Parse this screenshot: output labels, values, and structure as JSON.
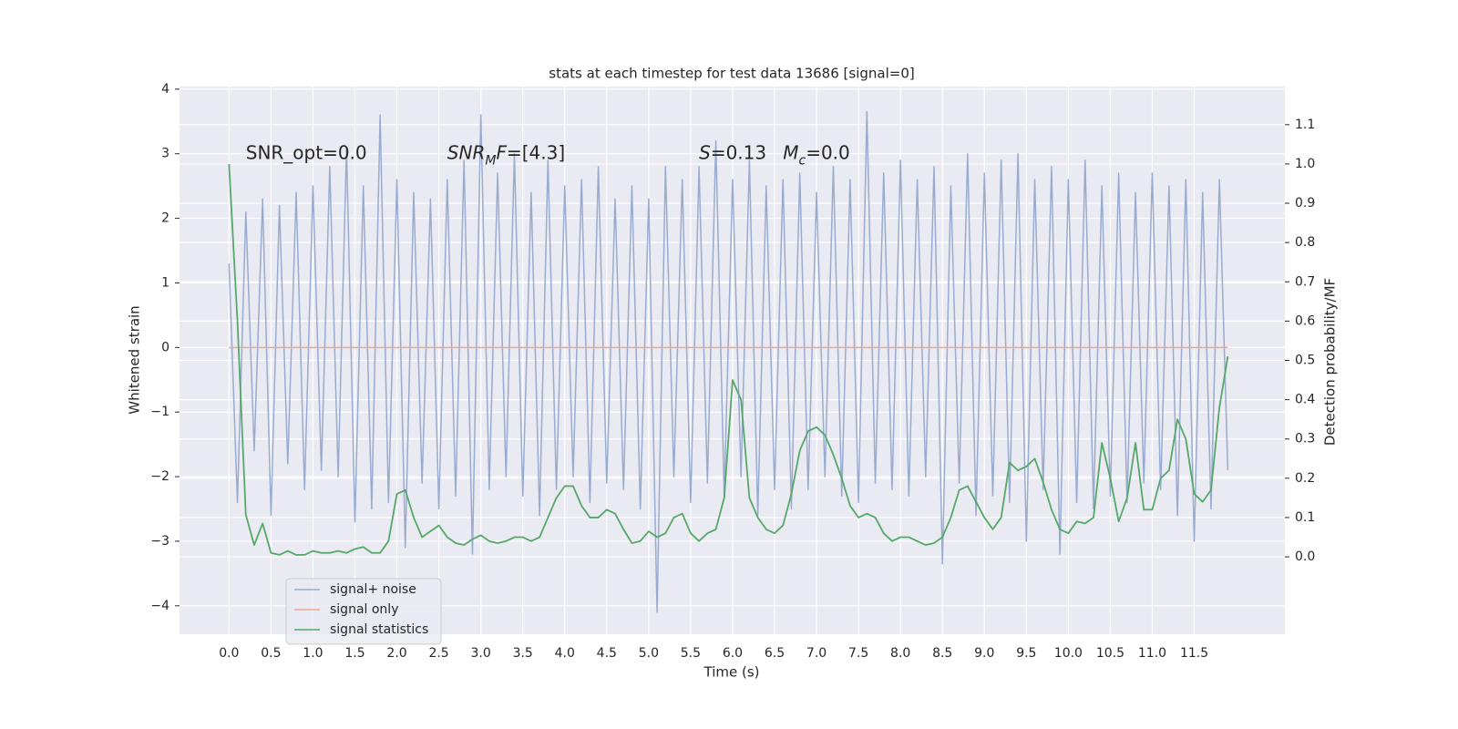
{
  "chart_data": {
    "type": "line",
    "title": "stats at each timestep for test data 13686 [signal=0]",
    "xlabel": "Time (s)",
    "ylabel": "Whitened strain",
    "y2label": "Detection probability/MF",
    "annotations": [
      {
        "x": 0.2,
        "y": 3.0,
        "segments": [
          {
            "text": "SNR_opt=0.0",
            "italic": false,
            "sub": false
          }
        ]
      },
      {
        "x": 2.6,
        "y": 3.0,
        "segments": [
          {
            "text": "SNR",
            "italic": true,
            "sub": false
          },
          {
            "text": "M",
            "italic": true,
            "sub": true
          },
          {
            "text": "F",
            "italic": true,
            "sub": false
          },
          {
            "text": "=[4.3]",
            "italic": false,
            "sub": false
          }
        ]
      },
      {
        "x": 5.6,
        "y": 3.0,
        "segments": [
          {
            "text": "S",
            "italic": true,
            "sub": false
          },
          {
            "text": "=0.13",
            "italic": false,
            "sub": false
          }
        ]
      },
      {
        "x": 6.6,
        "y": 3.0,
        "segments": [
          {
            "text": "M",
            "italic": true,
            "sub": false
          },
          {
            "text": "c",
            "italic": true,
            "sub": true
          },
          {
            "text": "=0.0",
            "italic": false,
            "sub": false
          }
        ]
      }
    ],
    "x": [
      0.0,
      0.1,
      0.2,
      0.3,
      0.4,
      0.5,
      0.6,
      0.7,
      0.8,
      0.9,
      1.0,
      1.1,
      1.2,
      1.3,
      1.4,
      1.5,
      1.6,
      1.7,
      1.8,
      1.9,
      2.0,
      2.1,
      2.2,
      2.3,
      2.4,
      2.5,
      2.6,
      2.7,
      2.8,
      2.9,
      3.0,
      3.1,
      3.2,
      3.3,
      3.4,
      3.5,
      3.6,
      3.7,
      3.8,
      3.9,
      4.0,
      4.1,
      4.2,
      4.3,
      4.4,
      4.5,
      4.6,
      4.7,
      4.8,
      4.9,
      5.0,
      5.1,
      5.2,
      5.3,
      5.4,
      5.5,
      5.6,
      5.7,
      5.8,
      5.9,
      6.0,
      6.1,
      6.2,
      6.3,
      6.4,
      6.5,
      6.6,
      6.7,
      6.8,
      6.9,
      7.0,
      7.1,
      7.2,
      7.3,
      7.4,
      7.5,
      7.6,
      7.7,
      7.8,
      7.9,
      8.0,
      8.1,
      8.2,
      8.3,
      8.4,
      8.5,
      8.6,
      8.7,
      8.8,
      8.9,
      9.0,
      9.1,
      9.2,
      9.3,
      9.4,
      9.5,
      9.6,
      9.7,
      9.8,
      9.9,
      10.0,
      10.1,
      10.2,
      10.3,
      10.4,
      10.5,
      10.6,
      10.7,
      10.8,
      10.9,
      11.0,
      11.1,
      11.2,
      11.3,
      11.4,
      11.5,
      11.6,
      11.7,
      11.8,
      11.9
    ],
    "series": [
      {
        "name": "signal+ noise",
        "color": "#9aabd0",
        "axis": "y",
        "values": [
          1.3,
          -2.4,
          2.1,
          -1.6,
          2.3,
          -2.6,
          2.2,
          -1.8,
          2.4,
          -2.2,
          2.5,
          -1.9,
          2.8,
          -2.0,
          3.1,
          -2.7,
          2.5,
          -2.5,
          3.6,
          -2.4,
          2.6,
          -3.1,
          2.4,
          -2.1,
          2.3,
          -2.5,
          2.6,
          -2.3,
          2.9,
          -3.2,
          3.6,
          -2.2,
          2.7,
          -2.0,
          3.0,
          -2.3,
          2.4,
          -2.6,
          2.9,
          -2.2,
          2.5,
          -2.0,
          2.6,
          -2.4,
          2.8,
          -2.1,
          2.3,
          -2.2,
          2.5,
          -2.5,
          2.3,
          -4.1,
          2.8,
          -2.0,
          2.6,
          -2.4,
          2.8,
          -2.1,
          3.2,
          -2.3,
          2.6,
          -2.0,
          2.9,
          -2.6,
          2.5,
          -2.2,
          2.6,
          -2.5,
          2.7,
          -2.2,
          2.4,
          -2.0,
          2.8,
          -2.3,
          2.6,
          -2.4,
          3.65,
          -2.1,
          2.7,
          -2.2,
          2.9,
          -2.3,
          2.6,
          -2.0,
          2.8,
          -3.35,
          2.5,
          -2.1,
          3.0,
          -2.6,
          2.7,
          -2.3,
          2.9,
          -2.4,
          3.0,
          -3.0,
          2.6,
          -2.2,
          2.8,
          -3.2,
          2.6,
          -2.4,
          2.9,
          -2.5,
          2.5,
          -2.3,
          2.7,
          -2.4,
          2.4,
          -2.1,
          2.7,
          -2.2,
          2.5,
          -2.6,
          2.6,
          -3.0,
          2.4,
          -2.5,
          2.6,
          -1.9
        ]
      },
      {
        "name": "signal only",
        "color": "#eba98a",
        "axis": "y",
        "values": [
          0,
          0,
          0,
          0,
          0,
          0,
          0,
          0,
          0,
          0,
          0,
          0,
          0,
          0,
          0,
          0,
          0,
          0,
          0,
          0,
          0,
          0,
          0,
          0,
          0,
          0,
          0,
          0,
          0,
          0,
          0,
          0,
          0,
          0,
          0,
          0,
          0,
          0,
          0,
          0,
          0,
          0,
          0,
          0,
          0,
          0,
          0,
          0,
          0,
          0,
          0,
          0,
          0,
          0,
          0,
          0,
          0,
          0,
          0,
          0,
          0,
          0,
          0,
          0,
          0,
          0,
          0,
          0,
          0,
          0,
          0,
          0,
          0,
          0,
          0,
          0,
          0,
          0,
          0,
          0,
          0,
          0,
          0,
          0,
          0,
          0,
          0,
          0,
          0,
          0,
          0,
          0,
          0,
          0,
          0,
          0,
          0,
          0,
          0,
          0,
          0,
          0,
          0,
          0,
          0,
          0,
          0,
          0,
          0,
          0,
          0,
          0,
          0,
          0,
          0,
          0,
          0,
          0,
          0,
          0
        ]
      },
      {
        "name": "signal statistics",
        "color": "#55a868",
        "axis": "y2",
        "values": [
          1.0,
          0.6,
          0.107,
          0.03,
          0.085,
          0.01,
          0.005,
          0.015,
          0.005,
          0.005,
          0.015,
          0.01,
          0.01,
          0.015,
          0.01,
          0.02,
          0.025,
          0.01,
          0.01,
          0.04,
          0.16,
          0.17,
          0.1,
          0.05,
          0.065,
          0.08,
          0.05,
          0.035,
          0.03,
          0.045,
          0.055,
          0.04,
          0.035,
          0.04,
          0.05,
          0.05,
          0.04,
          0.05,
          0.1,
          0.15,
          0.18,
          0.18,
          0.13,
          0.1,
          0.1,
          0.12,
          0.11,
          0.07,
          0.035,
          0.04,
          0.065,
          0.05,
          0.06,
          0.1,
          0.11,
          0.06,
          0.04,
          0.06,
          0.07,
          0.15,
          0.45,
          0.4,
          0.15,
          0.1,
          0.07,
          0.06,
          0.08,
          0.16,
          0.27,
          0.32,
          0.33,
          0.31,
          0.26,
          0.2,
          0.13,
          0.1,
          0.11,
          0.1,
          0.06,
          0.04,
          0.05,
          0.05,
          0.04,
          0.03,
          0.035,
          0.05,
          0.1,
          0.17,
          0.18,
          0.14,
          0.1,
          0.07,
          0.1,
          0.24,
          0.22,
          0.23,
          0.25,
          0.19,
          0.12,
          0.07,
          0.06,
          0.09,
          0.085,
          0.1,
          0.29,
          0.2,
          0.09,
          0.15,
          0.29,
          0.12,
          0.12,
          0.2,
          0.22,
          0.35,
          0.3,
          0.16,
          0.14,
          0.17,
          0.38,
          0.51
        ]
      }
    ],
    "xlim": [
      -0.59,
      12.58
    ],
    "ylim": [
      -4.44,
      4.04
    ],
    "y2lim": [
      -0.197,
      1.197
    ],
    "xticks": [
      {
        "value": 0.0,
        "label": "0.0"
      },
      {
        "value": 0.5,
        "label": "0.5"
      },
      {
        "value": 1.0,
        "label": "1.0"
      },
      {
        "value": 1.5,
        "label": "1.5"
      },
      {
        "value": 2.0,
        "label": "2.0"
      },
      {
        "value": 2.5,
        "label": "2.5"
      },
      {
        "value": 3.0,
        "label": "3.0"
      },
      {
        "value": 3.5,
        "label": "3.5"
      },
      {
        "value": 4.0,
        "label": "4.0"
      },
      {
        "value": 4.5,
        "label": "4.5"
      },
      {
        "value": 5.0,
        "label": "5.0"
      },
      {
        "value": 5.5,
        "label": "5.5"
      },
      {
        "value": 6.0,
        "label": "6.0"
      },
      {
        "value": 6.5,
        "label": "6.5"
      },
      {
        "value": 7.0,
        "label": "7.0"
      },
      {
        "value": 7.5,
        "label": "7.5"
      },
      {
        "value": 8.0,
        "label": "8.0"
      },
      {
        "value": 8.5,
        "label": "8.5"
      },
      {
        "value": 9.0,
        "label": "9.0"
      },
      {
        "value": 9.5,
        "label": "9.5"
      },
      {
        "value": 10.0,
        "label": "10.0"
      },
      {
        "value": 10.5,
        "label": "10.5"
      },
      {
        "value": 11.0,
        "label": "11.0"
      },
      {
        "value": 11.5,
        "label": "11.5"
      }
    ],
    "yticks": [
      {
        "value": -4,
        "label": "−4"
      },
      {
        "value": -3,
        "label": "−3"
      },
      {
        "value": -2,
        "label": "−2"
      },
      {
        "value": -1,
        "label": "−1"
      },
      0,
      1,
      2,
      3,
      4
    ],
    "y2ticks": [
      {
        "value": 0.0,
        "label": "0.0"
      },
      {
        "value": 0.1,
        "label": "0.1"
      },
      {
        "value": 0.2,
        "label": "0.2"
      },
      {
        "value": 0.3,
        "label": "0.3"
      },
      {
        "value": 0.4,
        "label": "0.4"
      },
      {
        "value": 0.5,
        "label": "0.5"
      },
      {
        "value": 0.6,
        "label": "0.6"
      },
      {
        "value": 0.7,
        "label": "0.7"
      },
      {
        "value": 0.8,
        "label": "0.8"
      },
      {
        "value": 0.9,
        "label": "0.9"
      },
      {
        "value": 1.0,
        "label": "1.0"
      },
      {
        "value": 1.1,
        "label": "1.1"
      }
    ],
    "grid": true,
    "legend": "lower left"
  }
}
